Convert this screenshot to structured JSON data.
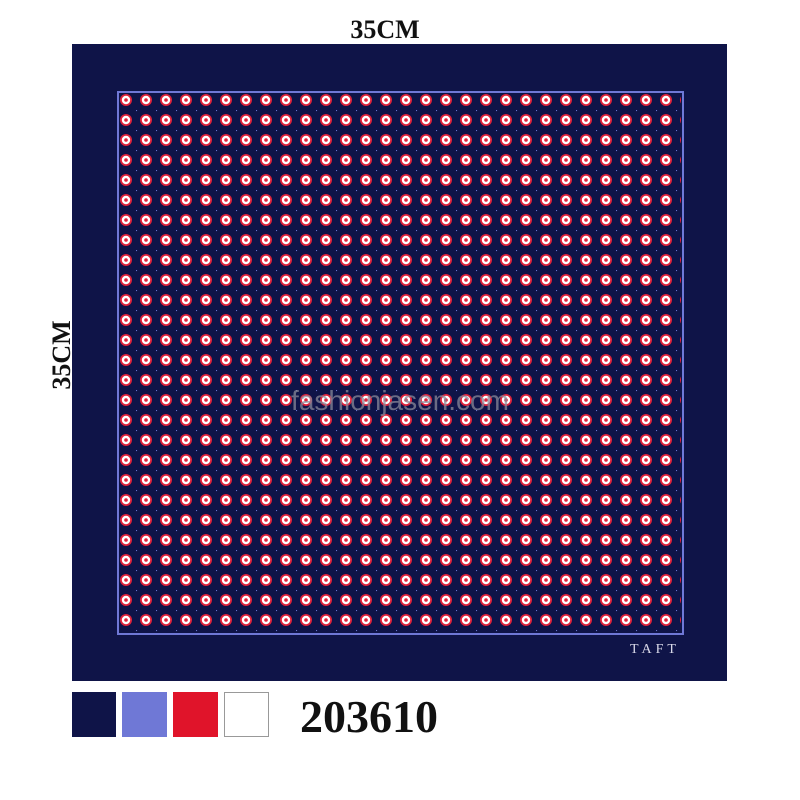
{
  "dimensions": {
    "width_label": "35CM",
    "height_label": "35CM"
  },
  "watermark": "fashionjasen.com",
  "brand": "TAFT",
  "product_code": "203610"
}
